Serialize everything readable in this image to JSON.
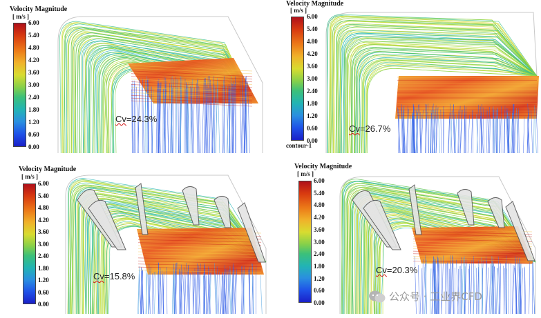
{
  "colorbar": {
    "title": "Velocity Magnitude",
    "unit": "[ m/s ]",
    "ticks": [
      "6.00",
      "5.40",
      "4.80",
      "4.20",
      "3.60",
      "3.00",
      "2.40",
      "1.80",
      "1.20",
      "0.60",
      "0.00"
    ]
  },
  "panels": [
    {
      "cv_name": "Cv",
      "cv_value": "=24.3%"
    },
    {
      "cv_name": "Cv",
      "cv_value": "=26.7%",
      "extra_label": "contour-1"
    },
    {
      "cv_name": "Cv",
      "cv_value": "=15.8%"
    },
    {
      "cv_name": "Cv",
      "cv_value": "=20.3%"
    }
  ],
  "watermark": {
    "text": "公众号 · 工业界CFD"
  },
  "colors": {
    "red": "#c8141a",
    "orange": "#f07a1a",
    "yellow": "#e6d82a",
    "green": "#5ccc4a",
    "cyan": "#22c0c0",
    "blue": "#2a5ae8"
  }
}
